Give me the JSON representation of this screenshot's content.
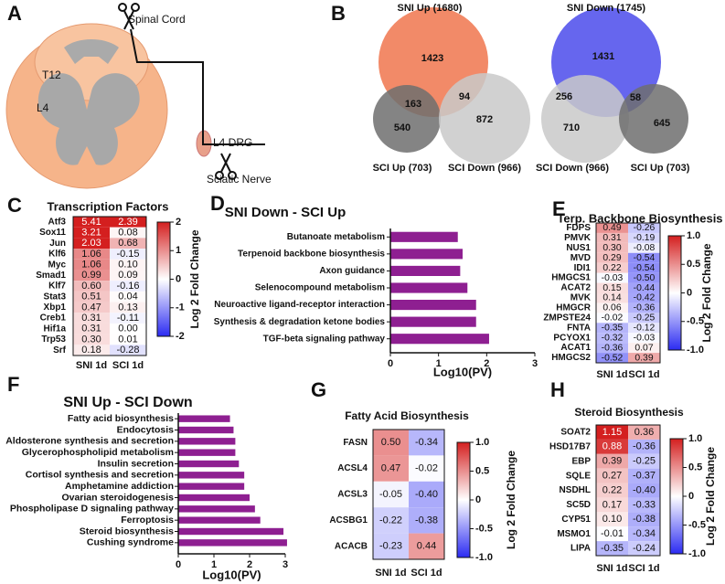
{
  "panel_labels": [
    "A",
    "B",
    "C",
    "D",
    "E",
    "F",
    "G",
    "H"
  ],
  "diagram": {
    "labels": [
      "Spinal Cord",
      "T12",
      "L4",
      "L4 DRG",
      "Sciatic Nerve"
    ]
  },
  "venn": [
    {
      "sets": [
        {
          "label": "SNI Up (1680)",
          "color": "#f28a68"
        },
        {
          "label": "SCI Up (703)",
          "color": "#6e6e6e"
        },
        {
          "label": "SCI Down (966)",
          "color": "#c9c9c9"
        }
      ],
      "counts": [
        1423,
        163,
        94,
        540,
        872
      ]
    },
    {
      "sets": [
        {
          "label": "SNI Down (1745)",
          "color": "#6666ee"
        },
        {
          "label": "SCI Down (966)",
          "color": "#c9c9c9"
        },
        {
          "label": "SCI Up (703)",
          "color": "#6e6e6e"
        }
      ],
      "counts": [
        1431,
        256,
        58,
        710,
        645
      ]
    }
  ],
  "chart_data": [
    {
      "type": "heatmap",
      "title": "Transcription Factors",
      "categories": [
        "Atf3",
        "Sox11",
        "Jun",
        "Klf6",
        "Myc",
        "Smad1",
        "Klf7",
        "Stat3",
        "Xbp1",
        "Creb1",
        "Hif1a",
        "Trp53",
        "Srf"
      ],
      "series": [
        {
          "name": "SNI 1d",
          "values": [
            5.41,
            3.21,
            2.03,
            1.06,
            1.06,
            0.99,
            0.6,
            0.51,
            0.47,
            0.31,
            0.31,
            0.3,
            0.18
          ],
          "value_labels": [
            "5.41",
            "3.21",
            "2.03",
            "1.06",
            "1.06",
            "0.99",
            "0.60",
            "0.51",
            "0.47",
            "0.31",
            "0.31",
            "0.30",
            "0.18"
          ]
        },
        {
          "name": "SCI 1d",
          "values": [
            2.39,
            0.08,
            0.68,
            -0.15,
            0.1,
            0.09,
            -0.16,
            0.04,
            0.13,
            -0.11,
            0,
            0.01,
            -0.28
          ],
          "value_labels": [
            "2.39",
            "0.08",
            "0.68",
            "-0.15",
            "0.10",
            "0.09",
            "-0.16",
            "0.04",
            "0.13",
            "-0.11",
            "0.00",
            "0.01",
            "-0.28"
          ]
        }
      ],
      "colorbar": {
        "label": "Log 2 Fold Change",
        "lim": [
          -2,
          2
        ],
        "ticks": [
          2,
          1,
          0,
          -1,
          -2
        ],
        "colors": [
          "#2b2bf2",
          "#ffffff",
          "#d41f1f"
        ]
      }
    },
    {
      "type": "hbar",
      "title": "SNI Down - SCI Up",
      "categories": [
        "Butanoate metabolism",
        "Terpenoid backbone biosynthesis",
        "Axon guidance",
        "Selenocompound metabolism",
        "Neuroactive ligand-receptor interaction",
        "Synthesis & degradation ketone bodies",
        "TGF-beta signaling pathway"
      ],
      "values": [
        1.4,
        1.5,
        1.45,
        1.6,
        1.78,
        1.78,
        2.05
      ],
      "color": "#8e1f91",
      "xlim": [
        0,
        3
      ],
      "xticks": [
        0,
        1,
        2,
        3
      ],
      "xlabel": "Log10(PV)"
    },
    {
      "type": "heatmap",
      "title": "Terp. Backbone Biosynthesis",
      "categories": [
        "FDPS",
        "PMVK",
        "NUS1",
        "MVD",
        "IDI1",
        "HMGCS1",
        "ACAT2",
        "MVK",
        "HMGCR",
        "ZMPSTE24",
        "FNTA",
        "PCYOX1",
        "ACAT1",
        "HMGCS2"
      ],
      "series": [
        {
          "name": "SNI 1d",
          "values": [
            0.49,
            0.31,
            0.3,
            0.29,
            0.22,
            -0.03,
            0.15,
            0.14,
            0.06,
            -0.02,
            -0.35,
            -0.32,
            -0.36,
            -0.52
          ],
          "value_labels": [
            "0.49",
            "0.31",
            "0.30",
            "0.29",
            "0.22",
            "-0.03",
            "0.15",
            "0.14",
            "0.06",
            "-0.02",
            "-0.35",
            "-0.32",
            "-0.36",
            "-0.52"
          ]
        },
        {
          "name": "SCI 1d",
          "values": [
            -0.26,
            -0.19,
            -0.08,
            -0.54,
            -0.54,
            -0.5,
            -0.44,
            -0.42,
            -0.36,
            -0.25,
            -0.12,
            -0.03,
            0.07,
            0.39
          ],
          "value_labels": [
            "-0.26",
            "-0.19",
            "-0.08",
            "-0.54",
            "-0.54",
            "-0.50",
            "-0.44",
            "-0.42",
            "-0.36",
            "-0.25",
            "-0.12",
            "-0.03",
            "0.07",
            "0.39"
          ]
        }
      ],
      "colorbar": {
        "label": "Log 2 Fold Change",
        "lim": [
          -1,
          1
        ],
        "ticks": [
          {
            "value": 1,
            "label": "1.0"
          },
          0.5,
          0,
          -0.5,
          {
            "value": -1,
            "label": "-1.0"
          }
        ],
        "colors": [
          "#2b2bf2",
          "#ffffff",
          "#d41f1f"
        ]
      }
    },
    {
      "type": "hbar",
      "title": "SNI Up - SCI Down",
      "categories": [
        "Fatty acid biosynthesis",
        "Endocytosis",
        "Aldosterone synthesis and secretion",
        "Glycerophospholipid metabolism",
        "Insulin secretion",
        "Cortisol synthesis and secretion",
        "Amphetamine addiction",
        "Ovarian steroidogenesis",
        "Phospholipase D signaling pathway",
        "Ferroptosis",
        "Steroid biosynthesis",
        "Cushing syndrome"
      ],
      "values": [
        1.45,
        1.55,
        1.6,
        1.6,
        1.7,
        1.85,
        1.85,
        2.0,
        2.15,
        2.3,
        2.95,
        3.05
      ],
      "color": "#8e1f91",
      "xlim": [
        0,
        3
      ],
      "xticks": [
        0,
        1,
        2,
        3
      ],
      "xlabel": "Log10(PV)"
    },
    {
      "type": "heatmap",
      "title": "Fatty Acid Biosynthesis",
      "categories": [
        "FASN",
        "ACSL4",
        "ACSL3",
        "ACSBG1",
        "ACACB"
      ],
      "series": [
        {
          "name": "SNI 1d",
          "values": [
            0.5,
            0.47,
            -0.05,
            -0.22,
            -0.23
          ],
          "value_labels": [
            "0.50",
            "0.47",
            "-0.05",
            "-0.22",
            "-0.23"
          ]
        },
        {
          "name": "SCI 1d",
          "values": [
            -0.34,
            -0.02,
            -0.4,
            -0.38,
            0.44
          ],
          "value_labels": [
            "-0.34",
            "-0.02",
            "-0.40",
            "-0.38",
            "0.44"
          ]
        }
      ],
      "colorbar": {
        "label": "Log 2 Fold Change",
        "lim": [
          -1,
          1
        ],
        "ticks": [
          {
            "value": 1,
            "label": "1.0"
          },
          0.5,
          0,
          -0.5,
          {
            "value": -1,
            "label": "-1.0"
          }
        ],
        "colors": [
          "#2b2bf2",
          "#ffffff",
          "#d41f1f"
        ]
      }
    },
    {
      "type": "heatmap",
      "title": "Steroid Biosynthesis",
      "categories": [
        "SOAT2",
        "HSD17B7",
        "EBP",
        "SQLE",
        "NSDHL",
        "SC5D",
        "CYP51",
        "MSMO1",
        "LIPA"
      ],
      "series": [
        {
          "name": "SNI 1d",
          "values": [
            1.15,
            0.88,
            0.39,
            0.27,
            0.22,
            0.17,
            0.1,
            -0.01,
            -0.35
          ],
          "value_labels": [
            "1.15",
            "0.88",
            "0.39",
            "0.27",
            "0.22",
            "0.17",
            "0.10",
            "-0.01",
            "-0.35"
          ]
        },
        {
          "name": "SCI 1d",
          "values": [
            0.36,
            -0.36,
            -0.25,
            -0.37,
            -0.4,
            -0.33,
            -0.38,
            -0.34,
            -0.24
          ],
          "value_labels": [
            "0.36",
            "-0.36",
            "-0.25",
            "-0.37",
            "-0.40",
            "-0.33",
            "-0.38",
            "-0.34",
            "-0.24"
          ]
        }
      ],
      "colorbar": {
        "label": "Log 2 Fold Change",
        "lim": [
          -1,
          1
        ],
        "ticks": [
          {
            "value": 1,
            "label": "1.0"
          },
          0.5,
          0,
          -0.5,
          {
            "value": -1,
            "label": "-1.0"
          }
        ],
        "colors": [
          "#2b2bf2",
          "#ffffff",
          "#d41f1f"
        ]
      }
    }
  ]
}
